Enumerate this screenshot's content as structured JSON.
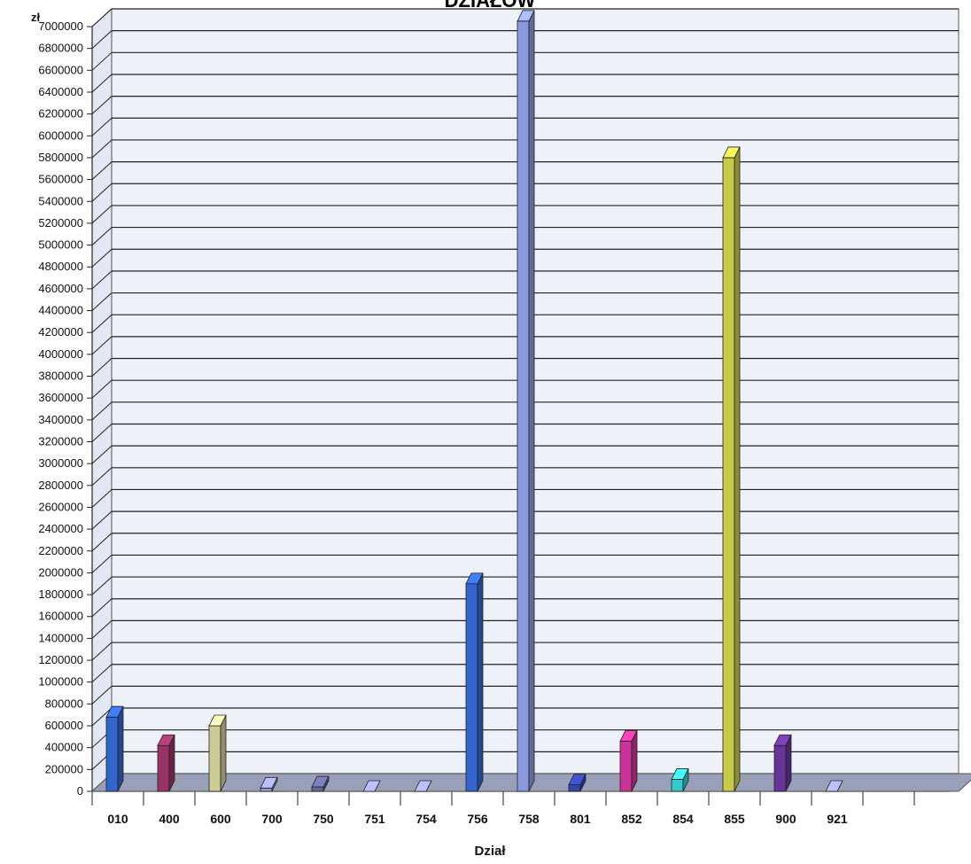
{
  "chart_data": {
    "type": "bar",
    "title": "DZIAŁÓW",
    "xlabel": "Dział",
    "ylabel": "zł",
    "ylim": [
      0,
      7000000
    ],
    "y_step": 200000,
    "grid": true,
    "legend": "none",
    "categories": [
      "010",
      "400",
      "600",
      "700",
      "750",
      "751",
      "754",
      "756",
      "758",
      "801",
      "852",
      "854",
      "855",
      "900",
      "921"
    ],
    "values": [
      680000,
      420000,
      600000,
      30000,
      40000,
      0,
      0,
      1900000,
      7050000,
      60000,
      460000,
      110000,
      5800000,
      420000,
      0
    ],
    "bar_colors": [
      "#3366cc",
      "#993366",
      "#cccc99",
      "#9999cc",
      "#666699",
      "#9999cc",
      "#9999cc",
      "#3366cc",
      "#8899dd",
      "#3344aa",
      "#cc3399",
      "#33cccc",
      "#c8c84a",
      "#663399",
      "#9999cc"
    ],
    "floor_color": "#9aa0b8",
    "wall_color": "#eef1f8"
  }
}
